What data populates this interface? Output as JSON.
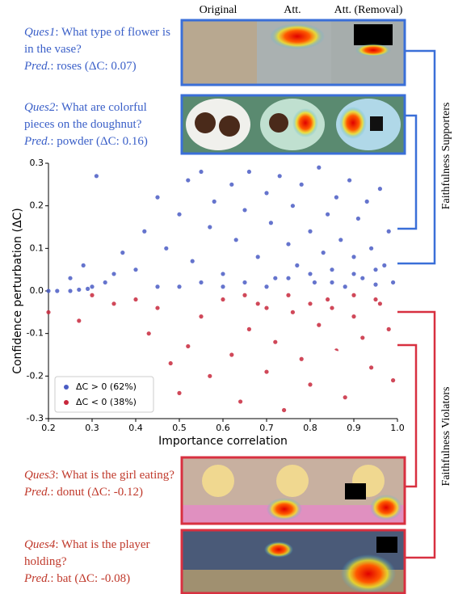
{
  "chart_data": {
    "type": "scatter",
    "xlabel": "Importance correlation",
    "ylabel": "Confidence perturbation (ΔC)",
    "xlim": [
      0.2,
      1.0
    ],
    "ylim": [
      -0.3,
      0.3
    ],
    "xticks": [
      0.2,
      0.3,
      0.4,
      0.5,
      0.6,
      0.7,
      0.8,
      0.9,
      {
        "value": 1.0,
        "label": "1.0"
      }
    ],
    "yticks": [
      -0.3,
      -0.2,
      -0.1,
      {
        "value": 0,
        "label": "0.0"
      },
      0.1,
      0.2,
      0.3
    ],
    "legend": "lower left",
    "series": [
      {
        "name": "ΔC > 0 (62%)",
        "color": "#4a5cc4",
        "x": [
          0.2,
          0.22,
          0.25,
          0.27,
          0.29,
          0.31,
          0.3,
          0.33,
          0.35,
          0.28,
          0.25,
          0.37,
          0.4,
          0.42,
          0.45,
          0.47,
          0.5,
          0.52,
          0.53,
          0.55,
          0.57,
          0.58,
          0.6,
          0.62,
          0.63,
          0.65,
          0.66,
          0.68,
          0.7,
          0.71,
          0.72,
          0.73,
          0.75,
          0.76,
          0.77,
          0.78,
          0.8,
          0.81,
          0.82,
          0.83,
          0.84,
          0.85,
          0.86,
          0.87,
          0.88,
          0.89,
          0.9,
          0.91,
          0.92,
          0.93,
          0.94,
          0.95,
          0.96,
          0.97,
          0.98,
          0.99,
          0.6,
          0.65,
          0.7,
          0.75,
          0.8,
          0.85,
          0.9,
          0.95,
          0.55,
          0.5,
          0.45
        ],
        "values": [
          0.0,
          0.0,
          0.0,
          0.003,
          0.005,
          0.27,
          0.01,
          0.02,
          0.04,
          0.06,
          0.03,
          0.09,
          0.05,
          0.14,
          0.22,
          0.1,
          0.18,
          0.26,
          0.07,
          0.28,
          0.15,
          0.21,
          0.04,
          0.25,
          0.12,
          0.19,
          0.28,
          0.08,
          0.23,
          0.16,
          0.03,
          0.27,
          0.11,
          0.2,
          0.06,
          0.25,
          0.14,
          0.02,
          0.29,
          0.09,
          0.18,
          0.05,
          0.22,
          0.12,
          0.01,
          0.26,
          0.08,
          0.17,
          0.03,
          0.21,
          0.1,
          0.015,
          0.24,
          0.06,
          0.14,
          0.02,
          0.01,
          0.02,
          0.01,
          0.03,
          0.04,
          0.02,
          0.04,
          0.05,
          0.02,
          0.01,
          0.01
        ]
      },
      {
        "name": "ΔC < 0 (38%)",
        "color": "#c8283c",
        "x": [
          0.2,
          0.27,
          0.3,
          0.35,
          0.4,
          0.43,
          0.45,
          0.48,
          0.5,
          0.52,
          0.55,
          0.57,
          0.6,
          0.62,
          0.64,
          0.66,
          0.68,
          0.7,
          0.72,
          0.74,
          0.76,
          0.78,
          0.8,
          0.82,
          0.84,
          0.86,
          0.88,
          0.9,
          0.92,
          0.94,
          0.96,
          0.98,
          0.99,
          0.65,
          0.75,
          0.85,
          0.95,
          0.7,
          0.8,
          0.9
        ],
        "values": [
          -0.05,
          -0.07,
          -0.01,
          -0.03,
          -0.02,
          -0.1,
          -0.04,
          -0.17,
          -0.24,
          -0.13,
          -0.06,
          -0.2,
          -0.02,
          -0.15,
          -0.26,
          -0.09,
          -0.03,
          -0.19,
          -0.12,
          -0.28,
          -0.05,
          -0.16,
          -0.22,
          -0.08,
          -0.02,
          -0.14,
          -0.25,
          -0.06,
          -0.11,
          -0.18,
          -0.03,
          -0.09,
          -0.21,
          -0.01,
          -0.01,
          -0.04,
          -0.02,
          -0.04,
          -0.03,
          -0.01
        ]
      }
    ]
  },
  "columns": [
    "Original",
    "Att.",
    "Att. (Removal)"
  ],
  "side_labels": [
    "Faithfulness Supporters",
    "Faithfulness Violators"
  ],
  "questions": [
    {
      "tag": "Ques1",
      "question": ": What type of flower is in the vase?",
      "pred_tag": "Pred.",
      "pred": ": roses (ΔC: 0.07)"
    },
    {
      "tag": "Ques2",
      "question": ": What are colorful pieces on the doughnut?",
      "pred_tag": "Pred.",
      "pred": ": powder (ΔC: 0.16)"
    },
    {
      "tag": "Ques3",
      "question": ": What is the girl eating?",
      "pred_tag": "Pred.",
      "pred": ": donut (ΔC: -0.12)"
    },
    {
      "tag": "Ques4",
      "question": ": What is the player holding?",
      "pred_tag": "Pred.",
      "pred": ": bat (ΔC: -0.08)"
    }
  ]
}
